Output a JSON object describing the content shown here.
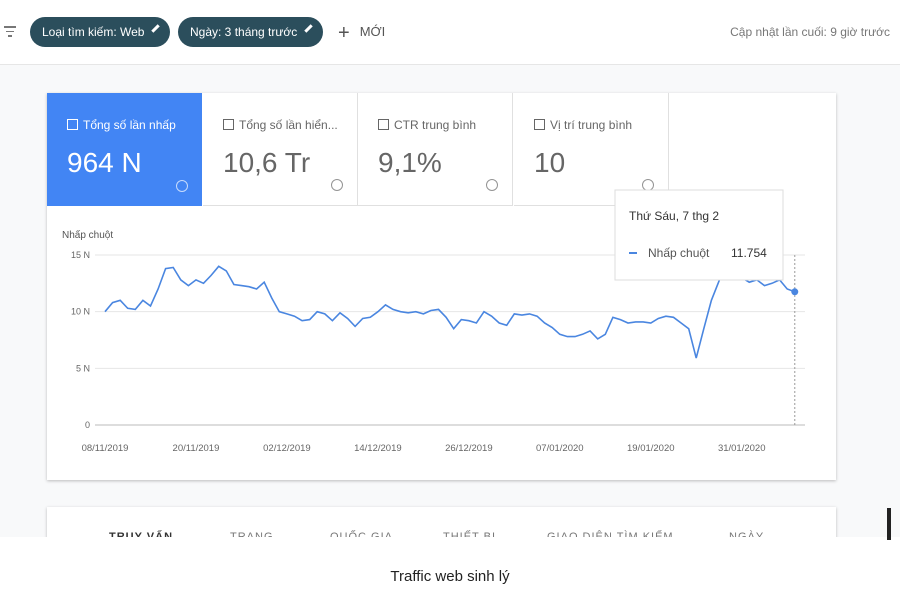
{
  "header": {
    "filters": [
      "Loại tìm kiếm: Web",
      "Ngày: 3 tháng trước"
    ],
    "new_button": "MỚI",
    "last_updated": "Cập nhật lần cuối: 9 giờ trước"
  },
  "metrics": [
    {
      "label": "Tổng số lần nhấp",
      "value": "964 N"
    },
    {
      "label": "Tổng số lần hiển...",
      "value": "10,6 Tr"
    },
    {
      "label": "CTR trung bình",
      "value": "9,1%"
    },
    {
      "label": "Vị trí trung bình",
      "value": "10"
    }
  ],
  "chart_data": {
    "type": "line",
    "y_label": "Nhấp chuột",
    "categories": [
      "08/11/2019",
      null,
      null,
      null,
      null,
      null,
      null,
      null,
      null,
      null,
      null,
      null,
      "20/11/2019",
      null,
      null,
      null,
      null,
      null,
      null,
      null,
      null,
      null,
      null,
      null,
      "02/12/2019",
      null,
      null,
      null,
      null,
      null,
      null,
      null,
      null,
      null,
      null,
      null,
      "14/12/2019",
      null,
      null,
      null,
      null,
      null,
      null,
      null,
      null,
      null,
      null,
      null,
      "26/12/2019",
      null,
      null,
      null,
      null,
      null,
      null,
      null,
      null,
      null,
      null,
      null,
      "07/01/2020",
      null,
      null,
      null,
      null,
      null,
      null,
      null,
      null,
      null,
      null,
      null,
      "19/01/2020",
      null,
      null,
      null,
      null,
      null,
      null,
      null,
      null,
      null,
      null,
      null,
      "31/01/2020",
      null,
      null,
      null,
      null,
      null,
      null,
      null
    ],
    "series": [
      {
        "name": "Nhấp chuột",
        "color": "#4a86e0",
        "values": [
          10000,
          10800,
          11000,
          10300,
          10200,
          11000,
          10500,
          12000,
          13800,
          13900,
          12800,
          12300,
          12800,
          12500,
          13200,
          14000,
          13600,
          12400,
          12300,
          12200,
          12000,
          12600,
          11200,
          10000,
          9800,
          9600,
          9200,
          9300,
          10000,
          9800,
          9200,
          9900,
          9400,
          8700,
          9400,
          9500,
          10000,
          10600,
          10200,
          10000,
          9900,
          10000,
          9800,
          10100,
          10200,
          9500,
          8500,
          9300,
          9200,
          9000,
          10000,
          9600,
          9000,
          8800,
          9800,
          9700,
          9800,
          9600,
          9000,
          8600,
          8000,
          7800,
          7800,
          8000,
          8300,
          7600,
          8000,
          9500,
          9300,
          9000,
          9100,
          9100,
          9000,
          9400,
          9600,
          9500,
          9000,
          8500,
          5900,
          8500,
          11000,
          12700,
          14500,
          13400,
          13000,
          12600,
          12800,
          12300,
          12500,
          12800,
          12000,
          11754
        ]
      }
    ],
    "ylim": [
      0,
      15000
    ],
    "yticks": [
      {
        "value": 0,
        "label": "0"
      },
      {
        "value": 5000,
        "label": "5 N"
      },
      {
        "value": 10000,
        "label": "10 N"
      },
      {
        "value": 15000,
        "label": "15 N"
      }
    ],
    "grid": true,
    "tooltip": {
      "title": "Thứ Sáu, 7 thg 2",
      "name": "Nhấp chuột",
      "value": 11754,
      "label": "11.754"
    }
  },
  "tabs": [
    "TRUY VẤN",
    "TRANG",
    "QUỐC GIA",
    "THIẾT BỊ",
    "GIAO DIỆN TÌM KIẾM",
    "NGÀY"
  ],
  "caption": "Traffic web sinh lý"
}
